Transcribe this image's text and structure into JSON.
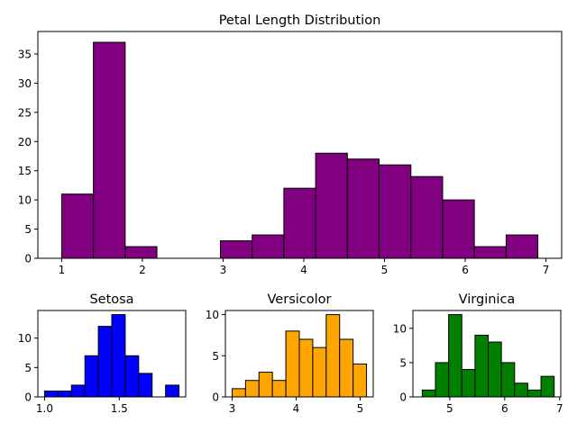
{
  "chart_data": [
    {
      "type": "bar",
      "title": "Petal Length Distribution",
      "xlim": [
        0.705,
        7.195
      ],
      "ylim": [
        0,
        38.85
      ],
      "xticks": [
        1,
        2,
        3,
        4,
        5,
        6,
        7
      ],
      "yticks": [
        0,
        5,
        10,
        15,
        20,
        25,
        30,
        35
      ],
      "bin_edges": [
        1.0,
        1.393,
        1.787,
        2.18,
        2.573,
        2.967,
        3.36,
        3.753,
        4.147,
        4.54,
        4.933,
        5.327,
        5.72,
        6.113,
        6.507,
        6.9
      ],
      "values": [
        11,
        37,
        2,
        0,
        0,
        3,
        4,
        12,
        18,
        17,
        16,
        14,
        10,
        2,
        4
      ],
      "color": "#800080"
    },
    {
      "type": "bar",
      "title": "Setosa",
      "xlim": [
        0.955,
        1.945
      ],
      "ylim": [
        0,
        14.7
      ],
      "xticks": [
        1.0,
        1.5
      ],
      "xtick_labels": [
        "1.0",
        "1.5"
      ],
      "yticks": [
        0,
        5,
        10
      ],
      "bin_edges": [
        1.0,
        1.09,
        1.18,
        1.27,
        1.36,
        1.45,
        1.54,
        1.63,
        1.72,
        1.81,
        1.9
      ],
      "values": [
        1,
        1,
        2,
        7,
        12,
        14,
        7,
        4,
        0,
        2
      ],
      "color": "#0000ff"
    },
    {
      "type": "bar",
      "title": "Versicolor",
      "xlim": [
        2.895,
        5.205
      ],
      "ylim": [
        0,
        10.5
      ],
      "xticks": [
        3,
        4,
        5
      ],
      "yticks": [
        0,
        5,
        10
      ],
      "bin_edges": [
        3.0,
        3.21,
        3.42,
        3.63,
        3.84,
        4.05,
        4.26,
        4.47,
        4.68,
        4.89,
        5.1
      ],
      "values": [
        1,
        2,
        3,
        2,
        8,
        7,
        6,
        10,
        7,
        4
      ],
      "color": "#ffa500"
    },
    {
      "type": "bar",
      "title": "Virginica",
      "xlim": [
        4.33,
        7.02
      ],
      "ylim": [
        0,
        12.6
      ],
      "xticks": [
        5,
        6,
        7
      ],
      "yticks": [
        0,
        5,
        10
      ],
      "bin_edges": [
        4.5,
        4.74,
        4.98,
        5.22,
        5.46,
        5.7,
        5.94,
        6.18,
        6.42,
        6.66,
        6.9
      ],
      "values": [
        1,
        5,
        12,
        4,
        9,
        8,
        5,
        2,
        1,
        3
      ],
      "color": "#008000"
    }
  ]
}
